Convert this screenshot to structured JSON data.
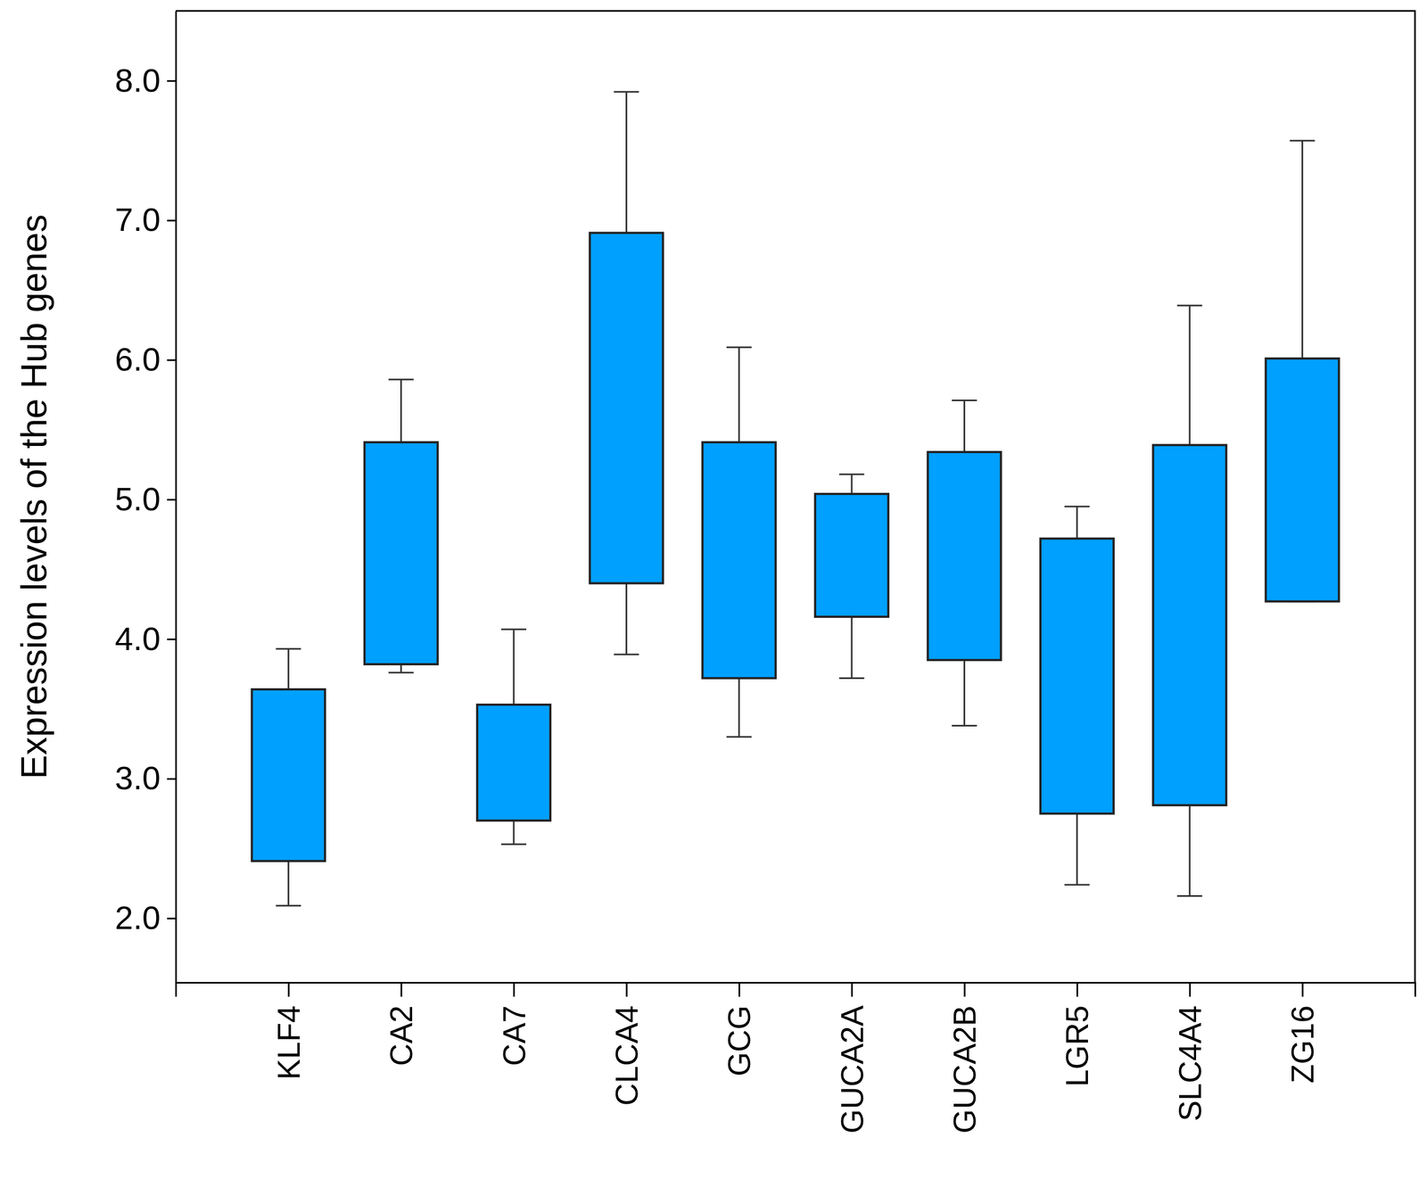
{
  "chart_data": {
    "type": "box",
    "y_label": "Expression levels of the Hub genes",
    "categories": [
      "KLF4",
      "CA2",
      "CA7",
      "CLCA4",
      "GCG",
      "GUCA2A",
      "GUCA2B",
      "LGR5",
      "SLC4A4",
      "ZG16"
    ],
    "min": [
      2.09,
      3.76,
      2.53,
      3.89,
      3.3,
      3.72,
      3.38,
      2.24,
      2.16,
      4.27
    ],
    "q1": [
      2.41,
      3.82,
      2.7,
      4.4,
      3.72,
      4.16,
      3.85,
      2.75,
      2.81,
      4.27
    ],
    "q3": [
      3.64,
      5.41,
      3.53,
      6.91,
      5.41,
      5.04,
      5.34,
      4.72,
      5.39,
      6.01
    ],
    "max": [
      3.93,
      5.86,
      4.07,
      7.92,
      6.09,
      5.18,
      5.71,
      4.95,
      6.39,
      7.57
    ],
    "color": "#00a0ff",
    "ylim": [
      1.54,
      8.5
    ],
    "yticks": [
      {
        "value": 2,
        "label": "2.0"
      },
      {
        "value": 3,
        "label": "3.0"
      },
      {
        "value": 4,
        "label": "4.0"
      },
      {
        "value": 5,
        "label": "5.0"
      },
      {
        "value": 6,
        "label": "6.0"
      },
      {
        "value": 7,
        "label": "7.0"
      },
      {
        "value": 8,
        "label": "8.0"
      }
    ],
    "grid": false
  }
}
